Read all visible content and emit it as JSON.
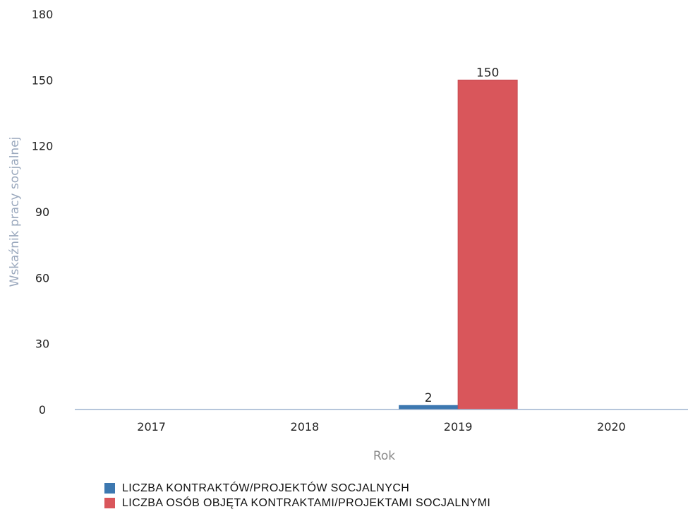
{
  "chart_data": {
    "type": "bar",
    "categories": [
      "2017",
      "2018",
      "2019",
      "2020"
    ],
    "series": [
      {
        "name": "LICZBA KONTRAKTÓW/PROJEKTÓW SOCJALNYCH",
        "color": "#3d78b0",
        "values": [
          0,
          0,
          2,
          0
        ],
        "labels": [
          "",
          "",
          "2",
          ""
        ]
      },
      {
        "name": "LICZBA OSÓB OBJĘTA KONTRAKTAMI/PROJEKTAMI SOCJALNYMI",
        "color": "#d9565b",
        "values": [
          0,
          0,
          150,
          0
        ],
        "labels": [
          "",
          "",
          "150",
          ""
        ]
      }
    ],
    "xlabel": "Rok",
    "ylabel": "Wskaźnik pracy socjalnej",
    "ylim": [
      0,
      180
    ],
    "yticks": [
      "0",
      "30",
      "60",
      "90",
      "120",
      "150",
      "180"
    ],
    "grid": false,
    "legend_position": "bottom-left"
  }
}
